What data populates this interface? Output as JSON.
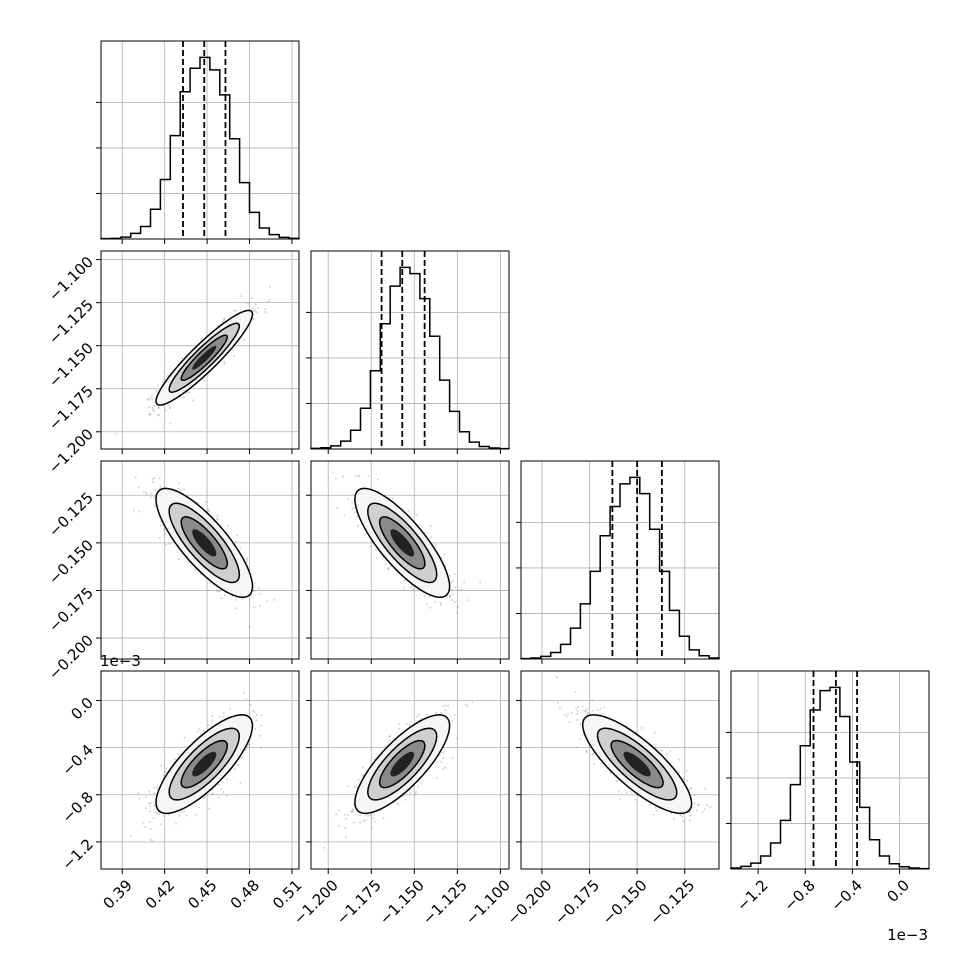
{
  "chart_data": {
    "type": "corner",
    "title": "",
    "grid": true,
    "parameters": [
      {
        "index": 0,
        "range": [
          0.375,
          0.515
        ],
        "ticks": [
          0.39,
          0.42,
          0.45,
          0.48,
          0.51
        ],
        "tick_labels": [
          "0.39",
          "0.42",
          "0.45",
          "0.48",
          "0.51"
        ],
        "offset_label": "",
        "quantiles": [
          0.433,
          0.448,
          0.463
        ],
        "mean": 0.448,
        "sd": 0.0155
      },
      {
        "index": 1,
        "range": [
          -1.21,
          -1.095
        ],
        "ticks": [
          -1.2,
          -1.175,
          -1.15,
          -1.125,
          -1.1
        ],
        "tick_labels": [
          "−1.200",
          "−1.175",
          "−1.150",
          "−1.125",
          "−1.100"
        ],
        "offset_label": "",
        "quantiles": [
          -1.169,
          -1.157,
          -1.144
        ],
        "mean": -1.157,
        "sd": 0.0125
      },
      {
        "index": 2,
        "range": [
          -0.211,
          -0.107
        ],
        "ticks": [
          -0.2,
          -0.175,
          -0.15,
          -0.125
        ],
        "tick_labels": [
          "−0.200",
          "−0.175",
          "−0.150",
          "−0.125"
        ],
        "offset_label": "",
        "quantiles": [
          -0.163,
          -0.15,
          -0.137
        ],
        "mean": -0.15,
        "sd": 0.013
      },
      {
        "index": 3,
        "range": [
          -1.43,
          0.25
        ],
        "ticks": [
          -1.2,
          -0.8,
          -0.4,
          0.0
        ],
        "tick_labels": [
          "−1.2",
          "−0.8",
          "−0.4",
          "0.0"
        ],
        "offset_label": "1e−3",
        "quantiles": [
          -0.73,
          -0.54,
          -0.36
        ],
        "mean": -0.54,
        "sd": 0.19
      }
    ],
    "histograms": [
      {
        "param": 0,
        "edges_start": 0.375,
        "bin_width": 0.007,
        "counts": [
          1,
          2,
          6,
          18,
          40,
          95,
          190,
          330,
          470,
          545,
          580,
          540,
          460,
          320,
          180,
          85,
          35,
          14,
          5,
          2
        ]
      },
      {
        "param": 1,
        "edges_start": -1.21,
        "bin_width": 0.00575,
        "counts": [
          2,
          4,
          10,
          25,
          60,
          130,
          250,
          400,
          520,
          580,
          560,
          480,
          360,
          220,
          120,
          55,
          22,
          8,
          3,
          1
        ]
      },
      {
        "param": 2,
        "edges_start": -0.211,
        "bin_width": 0.0052,
        "counts": [
          1,
          3,
          8,
          20,
          45,
          95,
          170,
          270,
          380,
          470,
          540,
          560,
          510,
          400,
          270,
          150,
          70,
          28,
          10,
          3
        ]
      },
      {
        "param": 3,
        "edges_start": -1.43,
        "bin_width": 0.084,
        "counts": [
          3,
          8,
          18,
          40,
          80,
          150,
          260,
          380,
          490,
          550,
          560,
          470,
          330,
          190,
          90,
          40,
          16,
          7,
          3,
          1
        ]
      }
    ],
    "pairs": [
      {
        "x": 0,
        "y": 1,
        "correlation": 0.92
      },
      {
        "x": 0,
        "y": 2,
        "correlation": -0.8
      },
      {
        "x": 1,
        "y": 2,
        "correlation": -0.8
      },
      {
        "x": 0,
        "y": 3,
        "correlation": 0.78
      },
      {
        "x": 1,
        "y": 3,
        "correlation": 0.78
      },
      {
        "x": 2,
        "y": 3,
        "correlation": -0.8
      }
    ]
  }
}
